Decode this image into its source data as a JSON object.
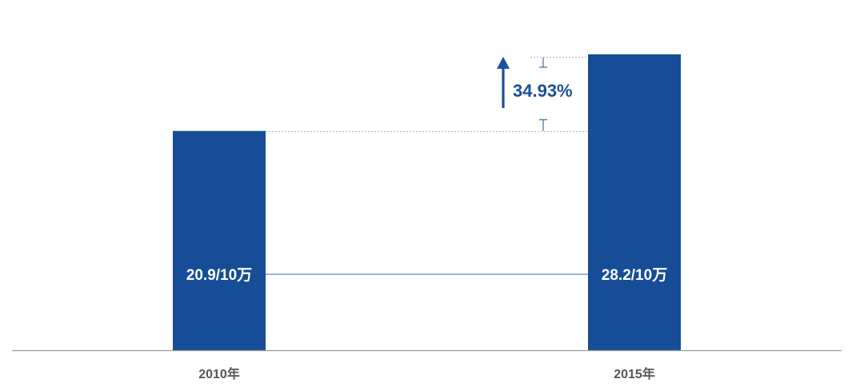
{
  "chart_data": {
    "type": "bar",
    "categories": [
      "2010年",
      "2015年"
    ],
    "values": [
      20.9,
      28.2
    ],
    "value_labels": [
      "20.9/10万",
      "28.2/10万"
    ],
    "ylim": [
      0,
      28.2
    ],
    "growth": {
      "label": "34.93%",
      "direction": "up"
    },
    "grid": false,
    "legend": "none",
    "colors": {
      "bar": "#164d96",
      "growth_text": "#1a4f99",
      "axis": "#9a9a9a",
      "connector": "#3b68b0",
      "guide": "#9a9a9a"
    }
  }
}
